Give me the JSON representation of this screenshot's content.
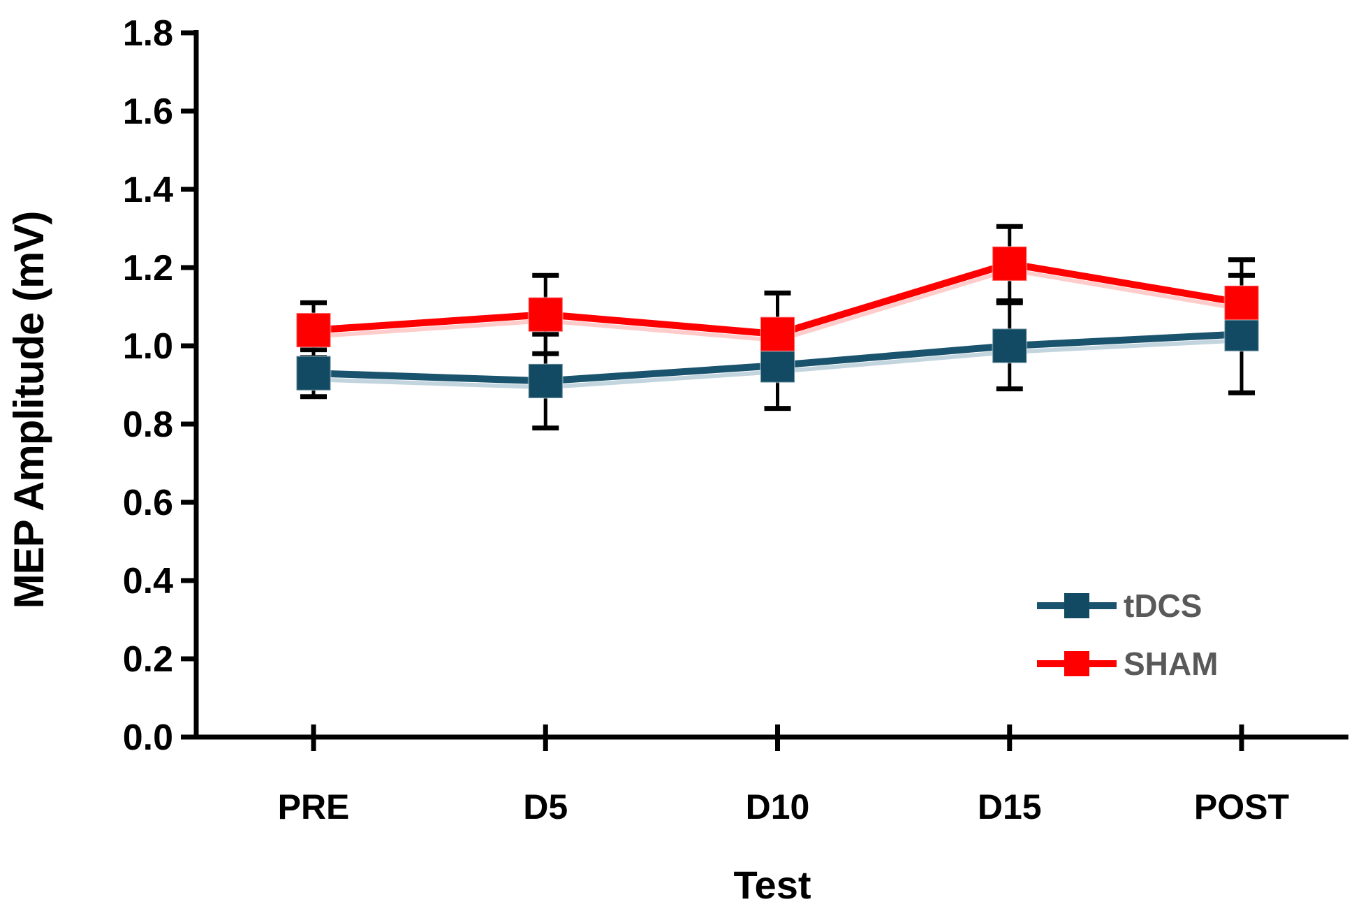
{
  "figure": {
    "background": "#FFFFFF",
    "axis_color": "#000000",
    "error_bar_color": "#000000",
    "legend_text_color": "#595959"
  },
  "chart_data": {
    "type": "line",
    "title": "",
    "xlabel": "Test",
    "ylabel": "MEP Amplitude (mV)",
    "categories": [
      "PRE",
      "D5",
      "D10",
      "D15",
      "POST"
    ],
    "yticks": [
      "0.0",
      "0.2",
      "0.4",
      "0.6",
      "0.8",
      "1.0",
      "1.2",
      "1.4",
      "1.6",
      "1.8"
    ],
    "ylim": [
      0.0,
      1.8
    ],
    "ytick_step": 0.2,
    "grid": false,
    "legend_position": "inside-bottom-right",
    "marker": "square",
    "series": [
      {
        "name": "tDCS",
        "color": "#114A62",
        "line_color": "#1A536D",
        "echo_color": "#8FB3C2",
        "values": [
          0.93,
          0.91,
          0.95,
          1.0,
          1.03
        ],
        "errors": [
          0.06,
          0.12,
          0.11,
          0.11,
          0.15
        ]
      },
      {
        "name": "SHAM",
        "color": "#FE0000",
        "line_color": "#FE0000",
        "echo_color": "#FFA3A3",
        "values": [
          1.04,
          1.08,
          1.03,
          1.21,
          1.11
        ],
        "errors": [
          0.07,
          0.1,
          0.105,
          0.095,
          0.11
        ]
      }
    ]
  }
}
